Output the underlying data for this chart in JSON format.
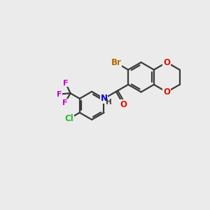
{
  "bg_color": "#ebebeb",
  "bond_color": "#3a3a3a",
  "atom_colors": {
    "O": "#dd1100",
    "N": "#0000cc",
    "Br": "#bb6600",
    "Cl": "#22bb22",
    "F": "#cc00cc",
    "H": "#3a3a3a"
  },
  "bond_width": 1.6,
  "figsize": [
    3.0,
    3.0
  ],
  "dpi": 100
}
